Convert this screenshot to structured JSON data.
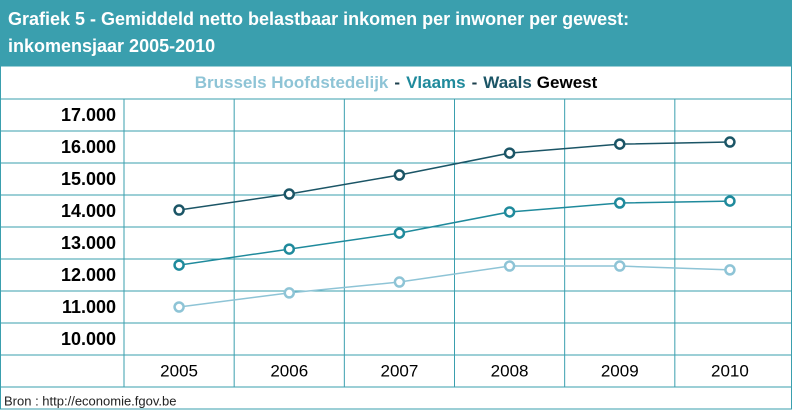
{
  "chart_data": {
    "type": "line",
    "title": "Grafiek 5 - Gemiddeld netto belastbaar inkomen per inwoner per gewest:",
    "title_line2": "inkomensjaar 2005-2010",
    "legend_separator": "-",
    "legend_suffix": "Gewest",
    "categories": [
      "2005",
      "2006",
      "2007",
      "2008",
      "2009",
      "2010"
    ],
    "series": [
      {
        "name": "Brussels Hoofdstedelijk",
        "color": "#8ec4d6",
        "values": [
          11000,
          11440,
          11780,
          12280,
          12280,
          12160
        ]
      },
      {
        "name": "Vlaams",
        "color": "#1f8a9c",
        "values": [
          12310,
          12810,
          13310,
          13970,
          14250,
          14310
        ]
      },
      {
        "name": "Waals",
        "color": "#1b5566",
        "values": [
          14030,
          14530,
          15125,
          15810,
          16090,
          16155
        ]
      }
    ],
    "ylim": [
      9500,
      17500
    ],
    "yticks": [
      {
        "value": 17000,
        "label": "17.000"
      },
      {
        "value": 16000,
        "label": "16.000"
      },
      {
        "value": 15000,
        "label": "15.000"
      },
      {
        "value": 14000,
        "label": "14.000"
      },
      {
        "value": 13000,
        "label": "13.000"
      },
      {
        "value": 12000,
        "label": "12.000"
      },
      {
        "value": 11000,
        "label": "11.000"
      },
      {
        "value": 10000,
        "label": "10.000"
      }
    ],
    "source": "Bron : http://economie.fgov.be"
  }
}
